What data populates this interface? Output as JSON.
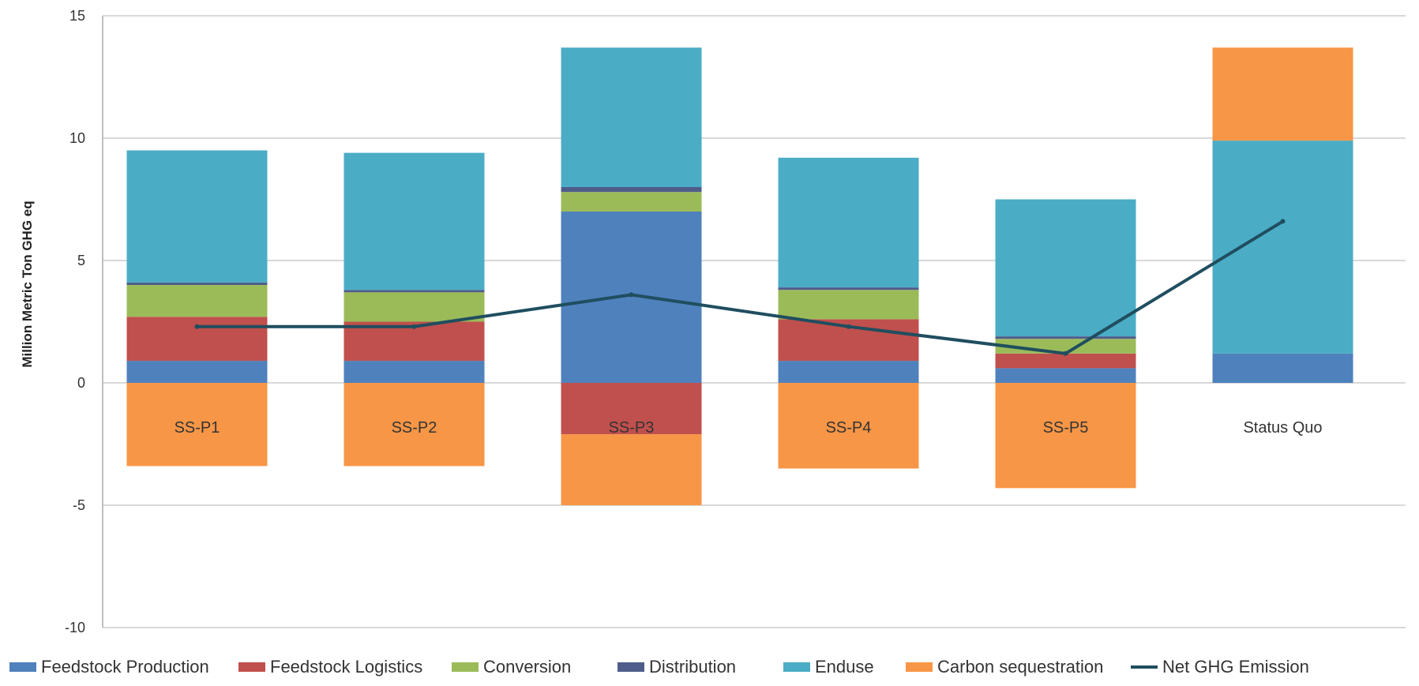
{
  "chart_data": {
    "type": "bar",
    "stacked": true,
    "ylabel": "Million Metric Ton GHG eq",
    "ylim": [
      -10,
      15
    ],
    "yticks": [
      15,
      10,
      5,
      0,
      -5,
      -10
    ],
    "grid": true,
    "legend_position": "bottom",
    "categories": [
      "SS-P1",
      "SS-P2",
      "SS-P3",
      "SS-P4",
      "SS-P5",
      "Status Quo"
    ],
    "series": [
      {
        "name": "Feedstock Production",
        "color": "#4f81bd",
        "values": [
          0.9,
          0.9,
          7.0,
          0.9,
          0.6,
          1.2
        ]
      },
      {
        "name": "Feedstock Logistics",
        "color": "#c0504d",
        "values": [
          1.8,
          1.6,
          -2.1,
          1.7,
          0.6,
          0.0
        ]
      },
      {
        "name": "Conversion",
        "color": "#9bbb59",
        "values": [
          1.3,
          1.2,
          0.8,
          1.2,
          0.6,
          0.0
        ]
      },
      {
        "name": "Distribution",
        "color": "#4f5d8a",
        "values": [
          0.1,
          0.1,
          0.2,
          0.1,
          0.1,
          0.0
        ]
      },
      {
        "name": "Enduse",
        "color": "#4bacc6",
        "values": [
          5.4,
          5.6,
          5.7,
          5.3,
          5.6,
          8.7
        ]
      },
      {
        "name": "Carbon sequestration",
        "color": "#f79646",
        "values": [
          -3.4,
          -3.4,
          -2.9,
          -3.5,
          -4.3,
          3.8
        ]
      }
    ],
    "line_series": {
      "name": "Net GHG Emission",
      "color": "#1f4e5f",
      "values": [
        2.3,
        2.3,
        3.6,
        2.3,
        1.2,
        6.6
      ]
    }
  }
}
